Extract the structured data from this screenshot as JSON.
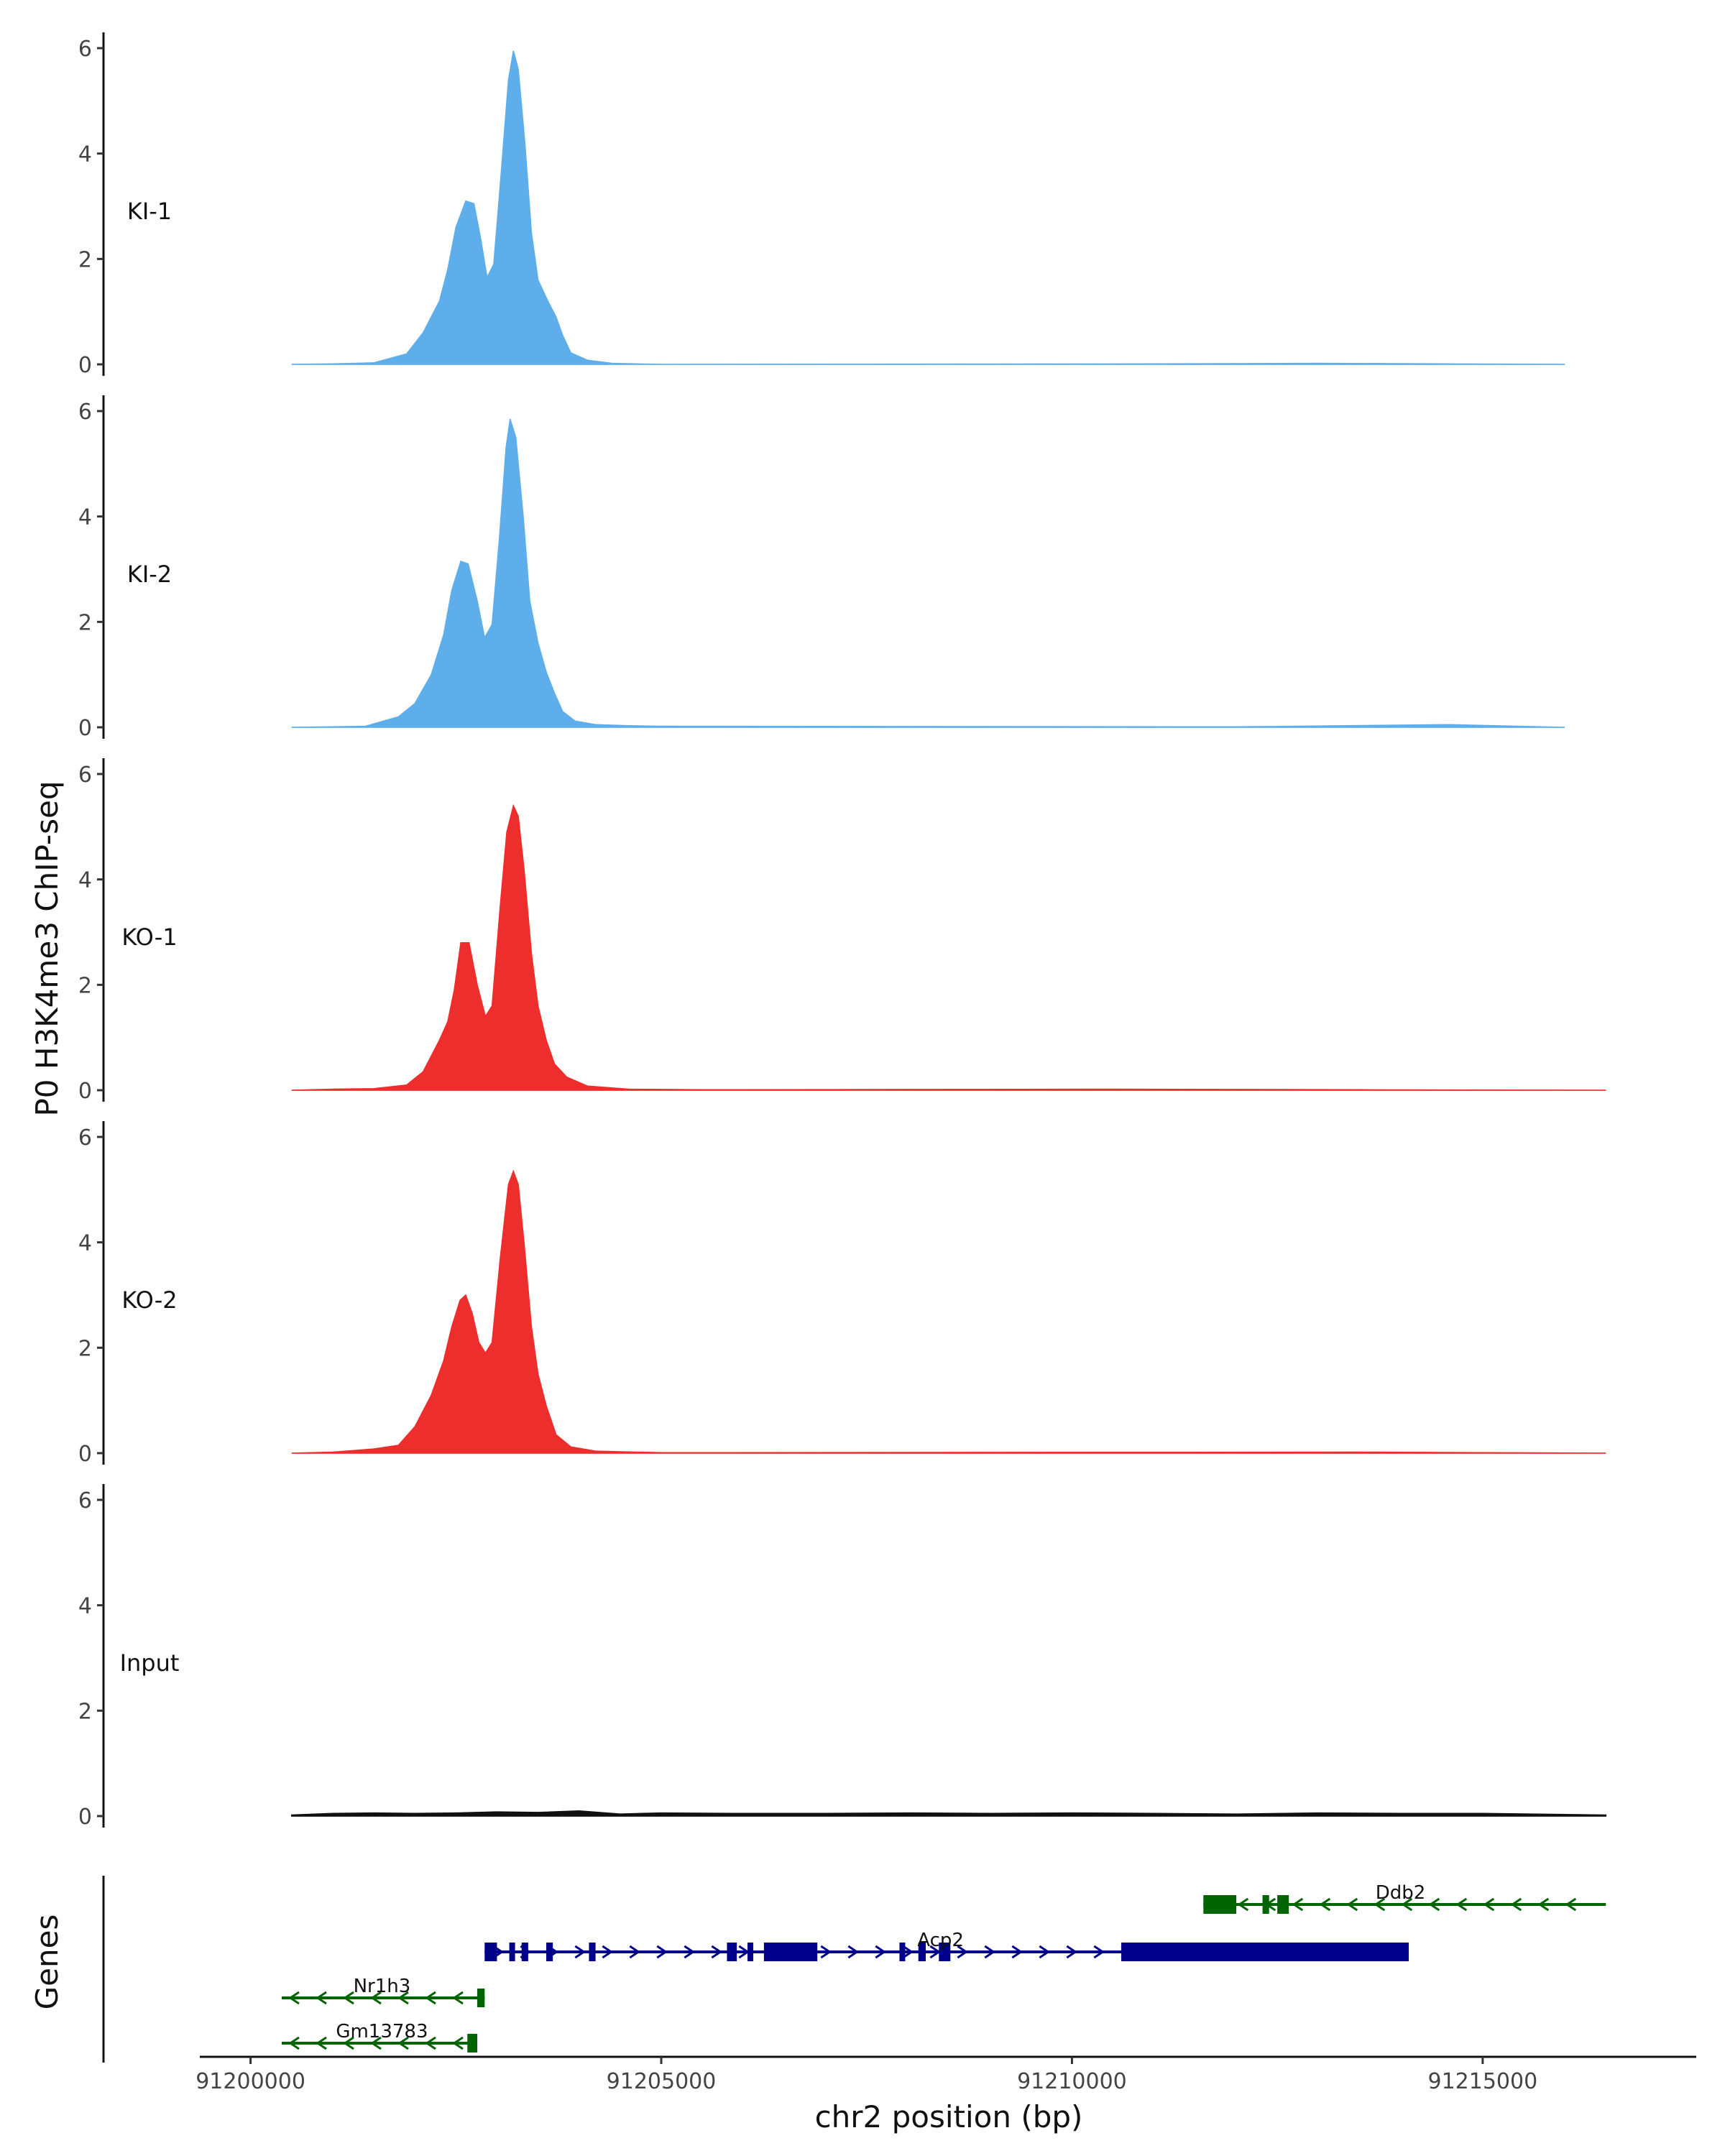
{
  "chart_data": {
    "type": "area",
    "ylabel": "P0 H3K4me3 ChIP-seq",
    "genes_ylabel": "Genes",
    "xlabel": "chr2 position (bp)",
    "xlim": [
      91199400,
      91217600
    ],
    "ylim": [
      0,
      6.3
    ],
    "y_ticks": [
      0,
      2,
      4,
      6
    ],
    "x_ticks": [
      91200000,
      91205000,
      91210000,
      91215000
    ],
    "x_tick_labels": [
      "91200000",
      "91205000",
      "91210000",
      "91215000"
    ],
    "grid": false,
    "legend": "none",
    "tracks": [
      {
        "label": "KI-1",
        "color": "#5FAEEC",
        "points": [
          [
            91200500,
            0
          ],
          [
            91201000,
            0.01
          ],
          [
            91201500,
            0.03
          ],
          [
            91201900,
            0.2
          ],
          [
            91202100,
            0.6
          ],
          [
            91202300,
            1.2
          ],
          [
            91202400,
            1.8
          ],
          [
            91202500,
            2.6
          ],
          [
            91202620,
            3.1
          ],
          [
            91202720,
            3.05
          ],
          [
            91202800,
            2.4
          ],
          [
            91202880,
            1.65
          ],
          [
            91202960,
            1.9
          ],
          [
            91203050,
            3.6
          ],
          [
            91203140,
            5.4
          ],
          [
            91203200,
            5.95
          ],
          [
            91203260,
            5.6
          ],
          [
            91203340,
            4.2
          ],
          [
            91203420,
            2.5
          ],
          [
            91203500,
            1.6
          ],
          [
            91203620,
            1.2
          ],
          [
            91203720,
            0.9
          ],
          [
            91203800,
            0.55
          ],
          [
            91203900,
            0.22
          ],
          [
            91204100,
            0.08
          ],
          [
            91204400,
            0.02
          ],
          [
            91205000,
            0
          ],
          [
            91211000,
            0.01
          ],
          [
            91213000,
            0.02
          ],
          [
            91216000,
            0
          ]
        ]
      },
      {
        "label": "KI-2",
        "color": "#5FAEEC",
        "points": [
          [
            91200500,
            0
          ],
          [
            91201000,
            0.01
          ],
          [
            91201400,
            0.02
          ],
          [
            91201800,
            0.2
          ],
          [
            91202000,
            0.45
          ],
          [
            91202200,
            1.0
          ],
          [
            91202350,
            1.75
          ],
          [
            91202450,
            2.6
          ],
          [
            91202560,
            3.15
          ],
          [
            91202650,
            3.1
          ],
          [
            91202760,
            2.4
          ],
          [
            91202850,
            1.7
          ],
          [
            91202940,
            1.95
          ],
          [
            91203030,
            3.6
          ],
          [
            91203110,
            5.3
          ],
          [
            91203160,
            5.85
          ],
          [
            91203230,
            5.5
          ],
          [
            91203320,
            4.0
          ],
          [
            91203400,
            2.4
          ],
          [
            91203500,
            1.6
          ],
          [
            91203600,
            1.05
          ],
          [
            91203700,
            0.65
          ],
          [
            91203800,
            0.3
          ],
          [
            91203950,
            0.12
          ],
          [
            91204200,
            0.05
          ],
          [
            91204600,
            0.03
          ],
          [
            91205000,
            0.02
          ],
          [
            91212000,
            0.01
          ],
          [
            91214600,
            0.05
          ],
          [
            91216000,
            0
          ]
        ]
      },
      {
        "label": "KO-1",
        "color": "#EE2D2D",
        "points": [
          [
            91200500,
            0
          ],
          [
            91201000,
            0.02
          ],
          [
            91201500,
            0.03
          ],
          [
            91201900,
            0.1
          ],
          [
            91202100,
            0.35
          ],
          [
            91202300,
            0.95
          ],
          [
            91202400,
            1.3
          ],
          [
            91202480,
            1.9
          ],
          [
            91202560,
            2.8
          ],
          [
            91202660,
            2.8
          ],
          [
            91202760,
            2.0
          ],
          [
            91202860,
            1.4
          ],
          [
            91202940,
            1.6
          ],
          [
            91203040,
            3.5
          ],
          [
            91203120,
            4.9
          ],
          [
            91203200,
            5.4
          ],
          [
            91203260,
            5.2
          ],
          [
            91203330,
            4.2
          ],
          [
            91203420,
            2.6
          ],
          [
            91203500,
            1.6
          ],
          [
            91203600,
            0.95
          ],
          [
            91203700,
            0.5
          ],
          [
            91203850,
            0.25
          ],
          [
            91204100,
            0.08
          ],
          [
            91204600,
            0.02
          ],
          [
            91205500,
            0.01
          ],
          [
            91210500,
            0.02
          ],
          [
            91213500,
            0.01
          ],
          [
            91216500,
            0
          ]
        ]
      },
      {
        "label": "KO-2",
        "color": "#EE2D2D",
        "points": [
          [
            91200500,
            0
          ],
          [
            91201000,
            0.02
          ],
          [
            91201500,
            0.08
          ],
          [
            91201800,
            0.15
          ],
          [
            91202000,
            0.5
          ],
          [
            91202200,
            1.1
          ],
          [
            91202350,
            1.75
          ],
          [
            91202450,
            2.4
          ],
          [
            91202550,
            2.9
          ],
          [
            91202620,
            3.0
          ],
          [
            91202700,
            2.65
          ],
          [
            91202780,
            2.1
          ],
          [
            91202860,
            1.9
          ],
          [
            91202940,
            2.1
          ],
          [
            91203040,
            3.7
          ],
          [
            91203140,
            5.1
          ],
          [
            91203200,
            5.35
          ],
          [
            91203260,
            5.1
          ],
          [
            91203330,
            4.0
          ],
          [
            91203420,
            2.4
          ],
          [
            91203500,
            1.5
          ],
          [
            91203600,
            0.9
          ],
          [
            91203720,
            0.35
          ],
          [
            91203900,
            0.12
          ],
          [
            91204200,
            0.04
          ],
          [
            91205000,
            0.01
          ],
          [
            91213500,
            0.02
          ],
          [
            91216500,
            0
          ]
        ]
      },
      {
        "label": "Input",
        "color": "#111111",
        "points": [
          [
            91200500,
            0.02
          ],
          [
            91201000,
            0.05
          ],
          [
            91201500,
            0.06
          ],
          [
            91202000,
            0.05
          ],
          [
            91202500,
            0.06
          ],
          [
            91203000,
            0.08
          ],
          [
            91203500,
            0.07
          ],
          [
            91204000,
            0.1
          ],
          [
            91204500,
            0.04
          ],
          [
            91205000,
            0.06
          ],
          [
            91206000,
            0.05
          ],
          [
            91207000,
            0.05
          ],
          [
            91208000,
            0.06
          ],
          [
            91209000,
            0.05
          ],
          [
            91210000,
            0.06
          ],
          [
            91211000,
            0.05
          ],
          [
            91212000,
            0.04
          ],
          [
            91213000,
            0.06
          ],
          [
            91214000,
            0.05
          ],
          [
            91215000,
            0.05
          ],
          [
            91216500,
            0.02
          ]
        ]
      }
    ],
    "genes": [
      {
        "name": "Ddb2",
        "strand": "-",
        "color": "#006400",
        "row": 0,
        "start": 91211600,
        "end": 91216500,
        "label_pos": 91214000,
        "exons": [
          [
            91211600,
            91212000
          ],
          [
            91212320,
            91212400
          ],
          [
            91212500,
            91212640
          ]
        ]
      },
      {
        "name": "Acp2",
        "strand": "+",
        "color": "#00008B",
        "row": 1,
        "start": 91202850,
        "end": 91214100,
        "label_pos": 91208400,
        "exons": [
          [
            91202850,
            91203000
          ],
          [
            91203150,
            91203200
          ],
          [
            91203300,
            91203380
          ],
          [
            91203600,
            91203680
          ],
          [
            91204120,
            91204200
          ],
          [
            91205800,
            91205920
          ],
          [
            91206050,
            91206120
          ],
          [
            91206250,
            91206900
          ],
          [
            91207900,
            91207970
          ],
          [
            91208130,
            91208220
          ],
          [
            91208380,
            91208520
          ],
          [
            91210600,
            91214100
          ]
        ]
      },
      {
        "name": "Nr1h3",
        "strand": "-",
        "color": "#006400",
        "row": 2,
        "start": 91200380,
        "end": 91202850,
        "label_pos": 91201600,
        "exons": [
          [
            91202760,
            91202850
          ]
        ]
      },
      {
        "name": "Gm13783",
        "strand": "-",
        "color": "#006400",
        "row": 3,
        "start": 91200380,
        "end": 91202760,
        "label_pos": 91201600,
        "exons": [
          [
            91202640,
            91202760
          ]
        ]
      }
    ]
  }
}
